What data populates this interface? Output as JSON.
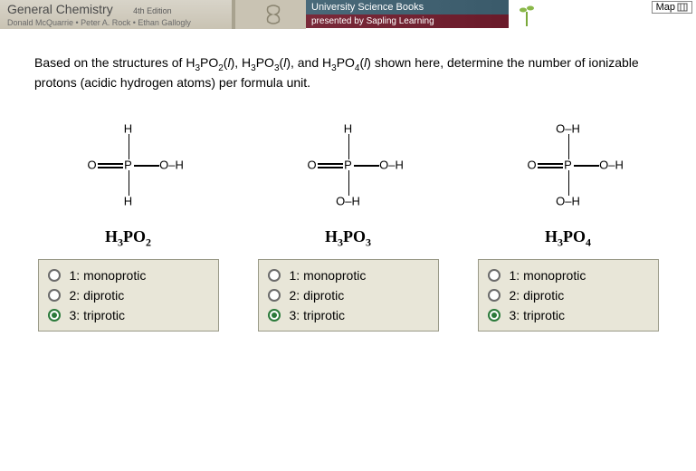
{
  "header": {
    "title": "General Chemistry",
    "edition": "4th Edition",
    "authors": "Donald McQuarrie • Peter A. Rock • Ethan Gallogly",
    "publisher": "University Science Books",
    "presented_by": "presented by Sapling Learning"
  },
  "top_right_button": "Map",
  "question": {
    "prefix": "Based on the structures of H",
    "f1_sub1": "3",
    "f1_mid": "PO",
    "f1_sub2": "2",
    "paren_l": "(",
    "state": "l",
    "paren_r": "),",
    "f2_pre": " H",
    "f2_sub1": "3",
    "f2_mid": "PO",
    "f2_sub2": "3",
    "and": ", and H",
    "f3_sub1": "3",
    "f3_mid": "PO",
    "f3_sub2": "4",
    "tail": " shown here, determine the number of ionizable protons (acidic hydrogen atoms) per formula unit."
  },
  "molecules": [
    {
      "formula_html": "H<sub>3</sub>PO<sub>2</sub>",
      "atoms": {
        "top": "H",
        "bottom": "H",
        "left": "O",
        "center": "P",
        "right": "O–H"
      },
      "selected": 2
    },
    {
      "formula_html": "H<sub>3</sub>PO<sub>3</sub>",
      "atoms": {
        "top": "H",
        "bottom": "O–H",
        "left": "O",
        "center": "P",
        "right": "O–H"
      },
      "selected": 2
    },
    {
      "formula_html": "H<sub>3</sub>PO<sub>4</sub>",
      "atoms": {
        "top": "O–H",
        "bottom": "O–H",
        "left": "O",
        "center": "P",
        "right": "O–H"
      },
      "selected": 2
    }
  ],
  "option_labels": [
    "1: monoprotic",
    "2: diprotic",
    "3: triprotic"
  ],
  "colors": {
    "panel_bg": "#e8e6d8",
    "panel_border": "#9a9a88",
    "radio_selected": "#2a7a3a"
  }
}
